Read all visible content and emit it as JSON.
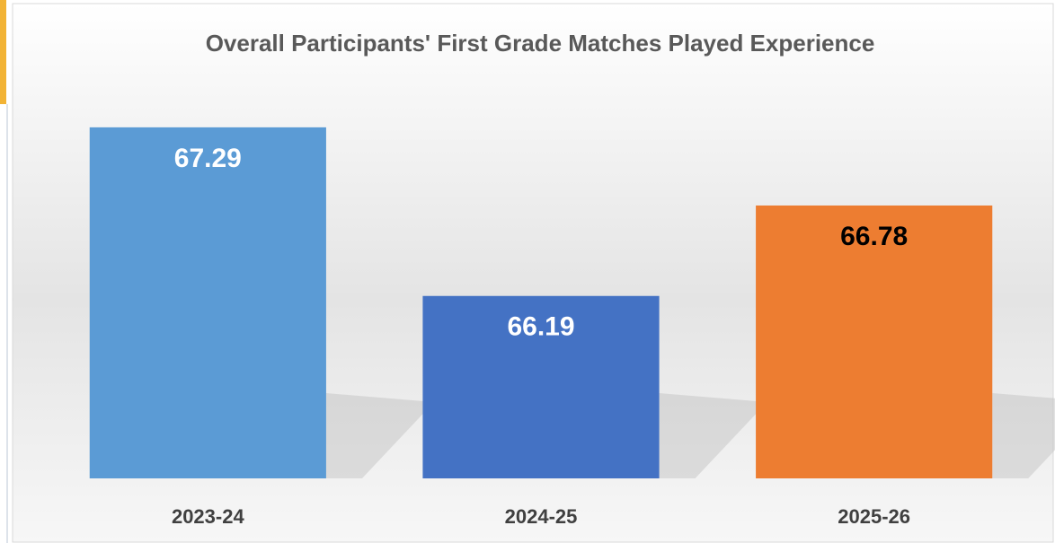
{
  "chart_data": {
    "type": "bar",
    "title": "Overall Participants' First Grade Matches Played Experience",
    "categories": [
      "2023-24",
      "2024-25",
      "2025-26"
    ],
    "values": [
      67.29,
      66.19,
      66.78
    ],
    "colors": [
      "#5b9bd5",
      "#4472c4",
      "#ed7d31"
    ],
    "value_label_colors": [
      "#ffffff",
      "#ffffff",
      "#000000"
    ],
    "ylim": [
      65,
      67.5
    ]
  }
}
